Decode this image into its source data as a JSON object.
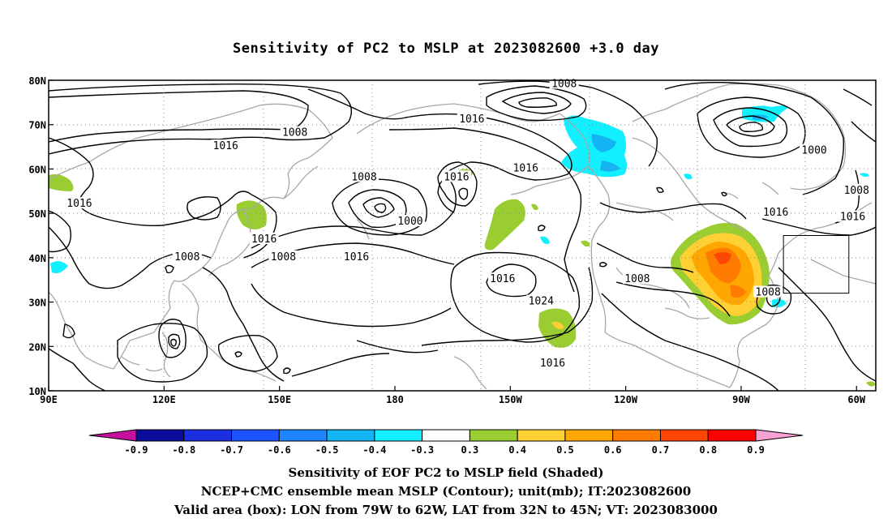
{
  "title": "Sensitivity of PC2 to MSLP at 2023082600 +3.0 day",
  "map": {
    "lon_range": [
      90,
      305
    ],
    "lat_range": [
      10,
      80
    ],
    "lat_ticks": [
      {
        "value": 80,
        "label": "80N"
      },
      {
        "value": 70,
        "label": "70N"
      },
      {
        "value": 60,
        "label": "60N"
      },
      {
        "value": 50,
        "label": "50N"
      },
      {
        "value": 40,
        "label": "40N"
      },
      {
        "value": 30,
        "label": "30N"
      },
      {
        "value": 20,
        "label": "20N"
      },
      {
        "value": 10,
        "label": "10N"
      }
    ],
    "lon_ticks": [
      {
        "value": 90,
        "label": "90E"
      },
      {
        "value": 120,
        "label": "120E"
      },
      {
        "value": 150,
        "label": "150E"
      },
      {
        "value": 180,
        "label": "180"
      },
      {
        "value": 210,
        "label": "150W"
      },
      {
        "value": 240,
        "label": "120W"
      },
      {
        "value": 270,
        "label": "90W"
      },
      {
        "value": 300,
        "label": "60W"
      }
    ],
    "contour_labels": [
      {
        "text": "1008",
        "lon": 224,
        "lat": 79
      },
      {
        "text": "1008",
        "lon": 154,
        "lat": 68
      },
      {
        "text": "1016",
        "lon": 200,
        "lat": 71
      },
      {
        "text": "1016",
        "lon": 136,
        "lat": 65
      },
      {
        "text": "1016",
        "lon": 98,
        "lat": 52
      },
      {
        "text": "1008",
        "lon": 172,
        "lat": 58
      },
      {
        "text": "1016",
        "lon": 196,
        "lat": 58
      },
      {
        "text": "1016",
        "lon": 214,
        "lat": 60
      },
      {
        "text": "1000",
        "lon": 184,
        "lat": 48
      },
      {
        "text": "1016",
        "lon": 146,
        "lat": 44
      },
      {
        "text": "1008",
        "lon": 151,
        "lat": 40
      },
      {
        "text": "1016",
        "lon": 170,
        "lat": 40
      },
      {
        "text": "1008",
        "lon": 126,
        "lat": 40
      },
      {
        "text": "1016",
        "lon": 208,
        "lat": 35
      },
      {
        "text": "1024",
        "lon": 218,
        "lat": 30
      },
      {
        "text": "1008",
        "lon": 243,
        "lat": 35
      },
      {
        "text": "1008",
        "lon": 277,
        "lat": 32
      },
      {
        "text": "1016",
        "lon": 279,
        "lat": 50
      },
      {
        "text": "1016",
        "lon": 221,
        "lat": 16
      },
      {
        "text": "1000",
        "lon": 289,
        "lat": 64
      },
      {
        "text": "1008",
        "lon": 300,
        "lat": 55
      },
      {
        "text": "1016",
        "lon": 299,
        "lat": 49
      }
    ],
    "valid_box": {
      "lon_min": 281,
      "lon_max": 298,
      "lat_min": 32,
      "lat_max": 45
    }
  },
  "colorbar": {
    "labels": [
      "-0.9",
      "-0.8",
      "-0.7",
      "-0.6",
      "-0.5",
      "-0.4",
      "-0.3",
      "0.3",
      "0.4",
      "0.5",
      "0.6",
      "0.7",
      "0.8",
      "0.9"
    ],
    "colors": [
      "#0c0c9a",
      "#1b2ee0",
      "#1c55ff",
      "#1f84ff",
      "#14b4f5",
      "#12f0ff",
      "#ffffff",
      "#9acd32",
      "#ffd034",
      "#ffa700",
      "#ff7c00",
      "#ff4500",
      "#ff0000"
    ],
    "left_tip_color": "#c4109c",
    "right_tip_color": "#f7a0d2"
  },
  "captions": {
    "line1": "Sensitivity of EOF PC2 to MSLP field (Shaded)",
    "line2": "NCEP+CMC ensemble mean MSLP (Contour); unit(mb); IT:2023082600",
    "line3": "Valid area (box): LON from 79W to 62W, LAT from 32N to 45N; VT: 2023083000"
  }
}
